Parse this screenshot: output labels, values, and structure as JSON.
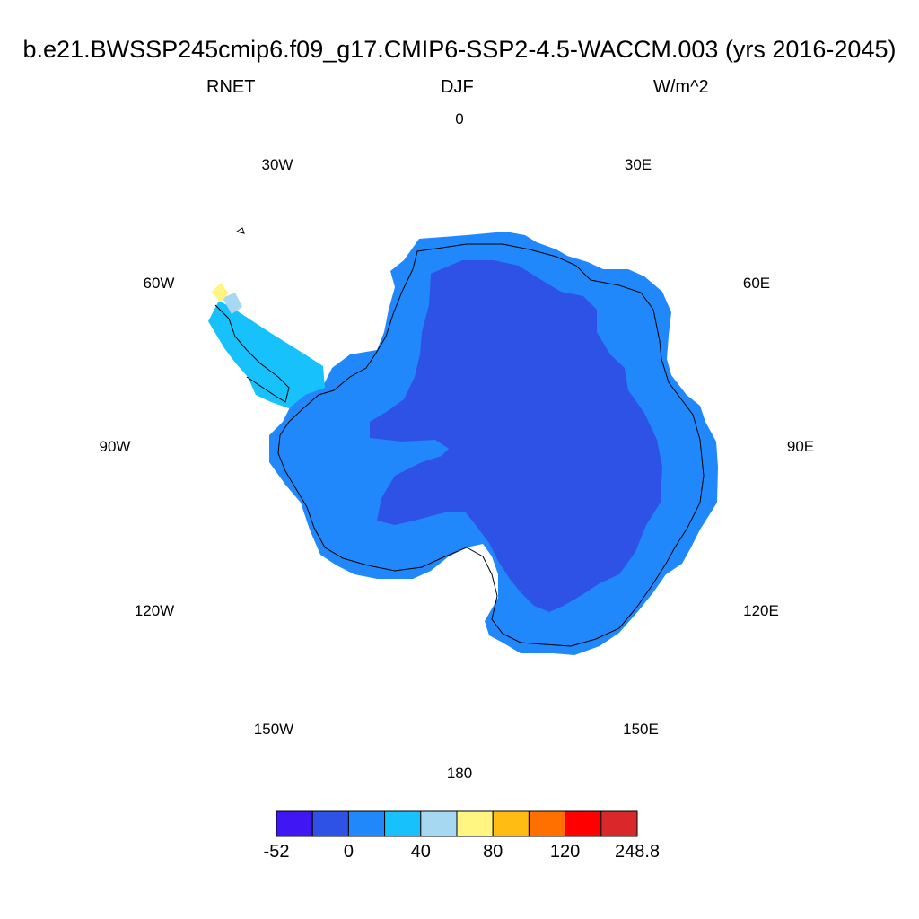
{
  "header": {
    "title": "b.e21.BWSSP245cmip6.f09_g17.CMIP6-SSP2-4.5-WACCM.003 (yrs 2016-2045)",
    "variable": "RNET",
    "season": "DJF",
    "units": "W/m^2"
  },
  "map": {
    "projection": "polar-stereographic-south",
    "longitude_labels": {
      "lon_0": "0",
      "lon_30e": "30E",
      "lon_60e": "60E",
      "lon_90e": "90E",
      "lon_120e": "120E",
      "lon_150e": "150E",
      "lon_180": "180",
      "lon_150w": "150W",
      "lon_120w": "120W",
      "lon_90w": "90W",
      "lon_60w": "60W",
      "lon_30w": "30W"
    },
    "field_colors": {
      "interior": "#2f52e6",
      "coastal": "#2188fb",
      "peninsula": "#17c1fb",
      "peninsula_light": "#a7d8f2",
      "peninsula_tip": "#fff580"
    }
  },
  "colorbar": {
    "colors": [
      "#4016f5",
      "#2f52e6",
      "#2188fb",
      "#17c1fb",
      "#a7d8f2",
      "#fff580",
      "#ffbd13",
      "#ff7000",
      "#ff0000",
      "#d9282a"
    ],
    "labels": [
      "-52",
      "0",
      "40",
      "80",
      "120",
      "248.8"
    ]
  }
}
